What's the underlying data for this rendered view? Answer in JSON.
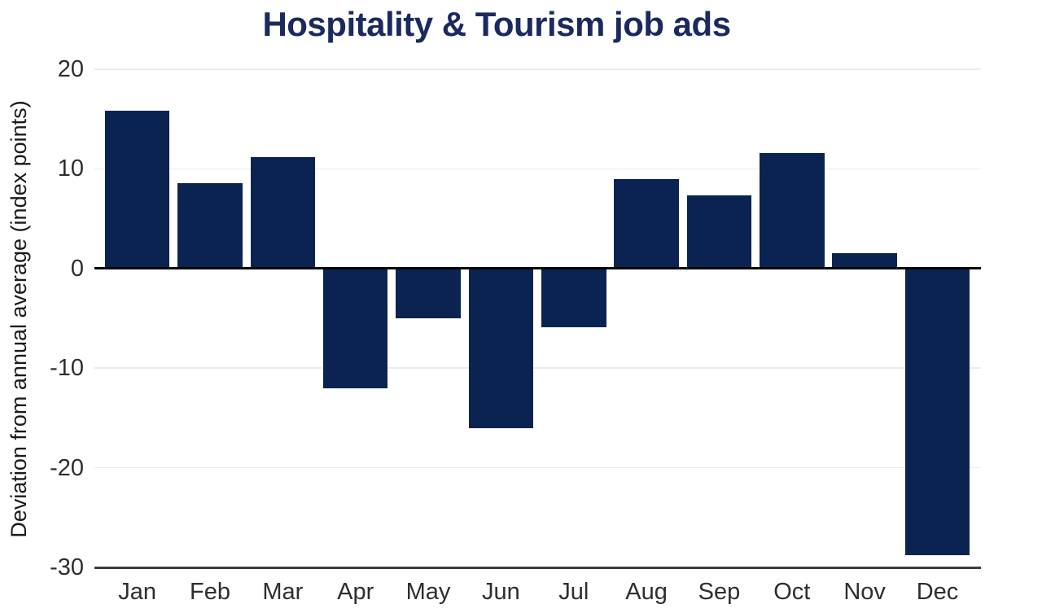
{
  "chart_data": {
    "type": "bar",
    "title": "Hospitality & Tourism job ads",
    "xlabel": "",
    "ylabel": "Deviation from annual average (index points)",
    "categories": [
      "Jan",
      "Feb",
      "Mar",
      "Apr",
      "May",
      "Jun",
      "Jul",
      "Aug",
      "Sep",
      "Oct",
      "Nov",
      "Dec"
    ],
    "values": [
      15.8,
      8.6,
      11.2,
      -12.0,
      -5.0,
      -16.0,
      -5.9,
      9.0,
      7.3,
      11.6,
      1.5,
      -28.8
    ],
    "ylim": [
      -30,
      20
    ],
    "yticks": [
      20,
      10,
      0,
      -10,
      -20,
      -30
    ],
    "grid": "horizontal",
    "legend": "none",
    "colors": {
      "bar": "#0b2351",
      "title": "#1b2a5e",
      "gridline": "#ececec",
      "zero_line": "#000000",
      "baseline": "#3d3d3d",
      "tick_label": "#2e2e2e",
      "axis_label": "#1a1a1a"
    }
  }
}
